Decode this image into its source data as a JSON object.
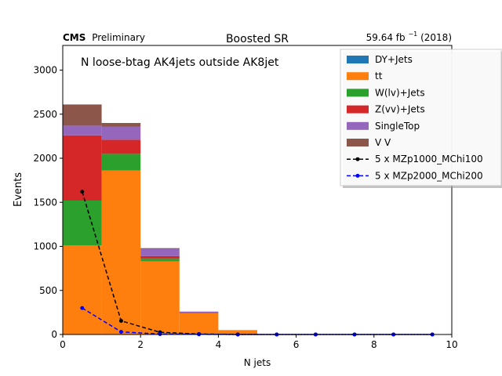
{
  "header": {
    "cms": "CMS",
    "preliminary": "Preliminary",
    "title": "Boosted SR",
    "lumi_prefix": "59.64 fb",
    "lumi_exp": "−1",
    "lumi_suffix": " (2018)"
  },
  "chart_data": {
    "type": "bar",
    "stacked": true,
    "annotation": "N loose-btag AK4jets outside AK8jet",
    "xlabel": "N jets",
    "ylabel": "Events",
    "xlim": [
      0,
      10
    ],
    "ylim": [
      0,
      3280
    ],
    "xticks": [
      0,
      2,
      4,
      6,
      8,
      10
    ],
    "yticks": [
      0,
      500,
      1000,
      1500,
      2000,
      2500,
      3000
    ],
    "bin_edges": [
      0,
      1,
      2,
      3,
      4,
      5,
      6,
      7,
      8,
      9,
      10
    ],
    "grid": false,
    "legend_position": "top-right",
    "series": [
      {
        "name": "DY+Jets",
        "color": "#1f77b4",
        "values": [
          0,
          0,
          0,
          0,
          0,
          0,
          0,
          0,
          0,
          0
        ]
      },
      {
        "name": "tt",
        "color": "#ff7f0e",
        "values": [
          1010,
          1860,
          830,
          240,
          50,
          0,
          0,
          0,
          0,
          0
        ]
      },
      {
        "name": "W(lv)+Jets",
        "color": "#2ca02c",
        "values": [
          510,
          190,
          30,
          0,
          0,
          0,
          0,
          0,
          0,
          0
        ]
      },
      {
        "name": "Z(vv)+Jets",
        "color": "#d62728",
        "values": [
          740,
          160,
          30,
          0,
          0,
          0,
          0,
          0,
          0,
          0
        ]
      },
      {
        "name": "SingleTop",
        "color": "#9467bd",
        "values": [
          110,
          150,
          80,
          20,
          0,
          0,
          0,
          0,
          0,
          0
        ]
      },
      {
        "name": "V V",
        "color": "#8c564b",
        "values": [
          240,
          40,
          10,
          0,
          0,
          0,
          0,
          0,
          0,
          0
        ]
      }
    ],
    "signals": [
      {
        "name": "5 x MZp1000_MChi100",
        "color": "#000000",
        "x": [
          0.5,
          1.5,
          2.5,
          3.5,
          4.5,
          5.5,
          6.5,
          7.5,
          8.5,
          9.5
        ],
        "values": [
          1620,
          155,
          25,
          5,
          0,
          0,
          0,
          0,
          0,
          0
        ]
      },
      {
        "name": "5 x MZp2000_MChi200",
        "color": "#0000ff",
        "x": [
          0.5,
          1.5,
          2.5,
          3.5,
          4.5,
          5.5,
          6.5,
          7.5,
          8.5,
          9.5
        ],
        "values": [
          300,
          30,
          5,
          2,
          0,
          0,
          0,
          0,
          0,
          0
        ]
      }
    ]
  }
}
